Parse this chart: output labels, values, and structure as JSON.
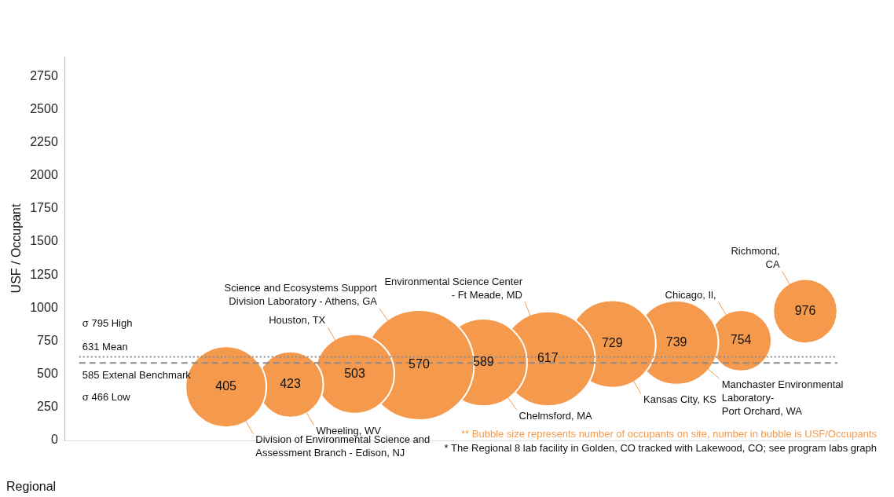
{
  "chart_data": {
    "type": "bubble",
    "ylabel": "USF / Occupant",
    "xlabel": "Regional",
    "categories": [
      null,
      null,
      null,
      null,
      null,
      null,
      null,
      null,
      null,
      null,
      null,
      null
    ],
    "series": [
      {
        "name": "Division of Environmental Science and\nAssessment Branch - Edison, NJ",
        "color": "#f59a4c",
        "values": [
          null,
          null,
          405,
          null,
          null,
          null,
          null,
          null,
          null,
          null,
          null,
          null
        ],
        "sizes": [
          null,
          null,
          0.54,
          null,
          null,
          null,
          null,
          null,
          null,
          null,
          null,
          null
        ]
      },
      {
        "name": "Wheeling, WV",
        "color": "#f59a4c",
        "values": [
          null,
          null,
          null,
          423,
          null,
          null,
          null,
          null,
          null,
          null,
          null,
          null
        ],
        "sizes": [
          null,
          null,
          null,
          0.36,
          null,
          null,
          null,
          null,
          null,
          null,
          null,
          null
        ]
      },
      {
        "name": "Houston, TX",
        "color": "#f59a4c",
        "values": [
          null,
          null,
          null,
          null,
          503,
          null,
          null,
          null,
          null,
          null,
          null,
          null
        ],
        "sizes": [
          null,
          null,
          null,
          null,
          0.52,
          null,
          null,
          null,
          null,
          null,
          null,
          null
        ]
      },
      {
        "name": "Science and Ecosystems Support\nDivision Laboratory - Athens, GA",
        "color": "#f59a4c",
        "values": [
          null,
          null,
          null,
          null,
          null,
          570,
          null,
          null,
          null,
          null,
          null,
          null
        ],
        "sizes": [
          null,
          null,
          null,
          null,
          null,
          1,
          null,
          null,
          null,
          null,
          null,
          null
        ]
      },
      {
        "name": "Chelmsford, MA",
        "color": "#f59a4c",
        "values": [
          null,
          null,
          null,
          null,
          null,
          null,
          589,
          null,
          null,
          null,
          null,
          null
        ],
        "sizes": [
          null,
          null,
          null,
          null,
          null,
          null,
          0.63,
          null,
          null,
          null,
          null,
          null
        ]
      },
      {
        "name": "Environmental Science Center\n- Ft Meade, MD",
        "color": "#f59a4c",
        "values": [
          null,
          null,
          null,
          null,
          null,
          null,
          null,
          617,
          null,
          null,
          null,
          null
        ],
        "sizes": [
          null,
          null,
          null,
          null,
          null,
          null,
          null,
          0.74,
          null,
          null,
          null,
          null
        ]
      },
      {
        "name": "Kansas City, KS",
        "color": "#f59a4c",
        "values": [
          null,
          null,
          null,
          null,
          null,
          null,
          null,
          null,
          729,
          null,
          null,
          null
        ],
        "sizes": [
          null,
          null,
          null,
          null,
          null,
          null,
          null,
          null,
          0.63,
          null,
          null,
          null
        ]
      },
      {
        "name": "Manchaster Environmental\nLaboratory-\nPort Orchard, WA",
        "color": "#f59a4c",
        "values": [
          null,
          null,
          null,
          null,
          null,
          null,
          null,
          null,
          null,
          739,
          null,
          null
        ],
        "sizes": [
          null,
          null,
          null,
          null,
          null,
          null,
          null,
          null,
          null,
          0.58,
          null,
          null
        ]
      },
      {
        "name": "Chicago, Il,",
        "color": "#f59a4c",
        "values": [
          null,
          null,
          null,
          null,
          null,
          null,
          null,
          null,
          null,
          null,
          754,
          null
        ],
        "sizes": [
          null,
          null,
          null,
          null,
          null,
          null,
          null,
          null,
          null,
          null,
          0.31,
          null
        ]
      },
      {
        "name": "Richmond,\nCA",
        "color": "#f59a4c",
        "values": [
          null,
          null,
          null,
          null,
          null,
          null,
          null,
          null,
          null,
          null,
          null,
          976
        ],
        "sizes": [
          null,
          null,
          null,
          null,
          null,
          null,
          null,
          null,
          null,
          null,
          null,
          0.34
        ]
      }
    ],
    "ylim": [
      0,
      2900
    ],
    "yticks": [
      0,
      250,
      500,
      750,
      1000,
      1250,
      1500,
      1750,
      2000,
      2250,
      2500,
      2750
    ],
    "grid": false,
    "legend": false,
    "data_labels": true,
    "ref_lines": [
      {
        "axis": "y",
        "value": 631,
        "label": "631 Mean",
        "line_style": "dotted",
        "color": "#8c8c8c"
      },
      {
        "axis": "y",
        "value": 585,
        "label": "585 Extenal Benchmark",
        "line_style": "dashed",
        "color": "#8c8c8c"
      }
    ],
    "annotations": [
      "σ 795 High",
      "σ 466 Low",
      "** Bubble size represents number of occupants on site, number in bubble is USF/Occupants",
      "* The Regional 8 lab facility in Golden, CO tracked with Lakewood, CO; see program labs graph"
    ]
  }
}
